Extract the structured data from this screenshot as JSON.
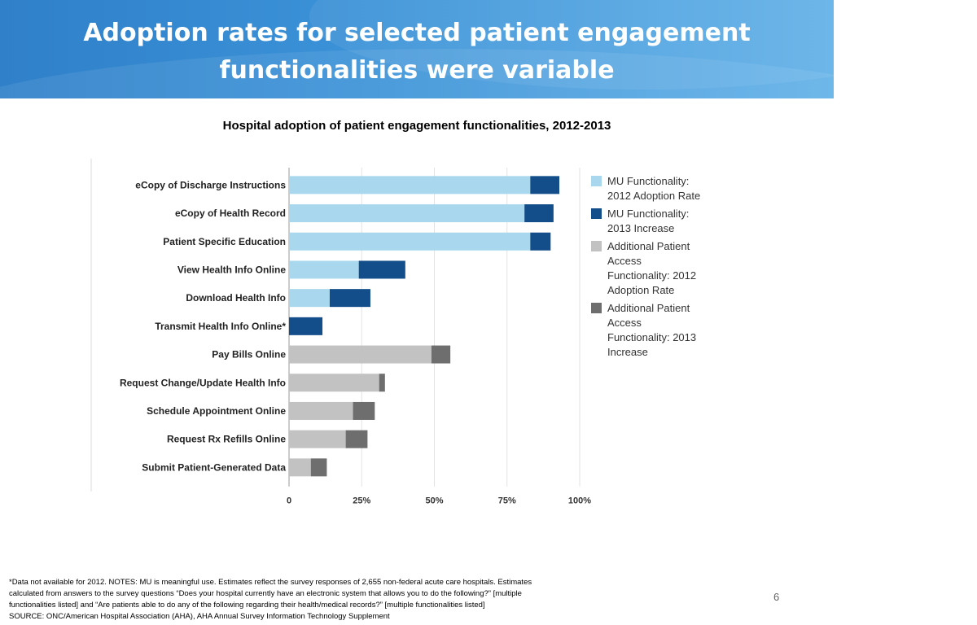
{
  "slide": {
    "title_line1": "Adoption rates for selected patient engagement",
    "title_line2": "functionalities were variable",
    "page_number": "6"
  },
  "chart_data": {
    "type": "bar",
    "orientation": "horizontal",
    "stacked": true,
    "title": "Hospital adoption of patient engagement functionalities, 2012-2013",
    "categories": [
      "eCopy of Discharge Instructions",
      "eCopy of Health Record",
      "Patient Specific Education",
      "View Health Info Online",
      "Download Health Info",
      "Transmit Health Info Online*",
      "Pay Bills Online",
      "Request Change/Update Health Info",
      "Schedule Appointment Online",
      "Request Rx Refills Online",
      "Submit Patient-Generated Data"
    ],
    "category_group": [
      "MU",
      "MU",
      "MU",
      "MU",
      "MU",
      "MU",
      "Additional",
      "Additional",
      "Additional",
      "Additional",
      "Additional"
    ],
    "series": [
      {
        "name": "MU Functionality: 2012 Adoption Rate",
        "color": "#a9d8ee",
        "values": [
          83,
          81,
          83,
          24,
          14,
          null,
          null,
          null,
          null,
          null,
          null
        ]
      },
      {
        "name": "MU Functionality: 2013 Increase",
        "color": "#134e8a",
        "values": [
          10,
          10,
          7,
          16,
          14,
          11.5,
          null,
          null,
          null,
          null,
          null
        ]
      },
      {
        "name": "Additional Patient Access Functionality: 2012 Adoption Rate",
        "color": "#c2c2c2",
        "values": [
          null,
          null,
          null,
          null,
          null,
          null,
          49,
          31,
          22,
          19.5,
          7.5
        ]
      },
      {
        "name": "Additional Patient Access Functionality: 2013 Increase",
        "color": "#6e6e6e",
        "values": [
          null,
          null,
          null,
          null,
          null,
          null,
          6.5,
          2,
          7.5,
          7.5,
          5.5
        ]
      }
    ],
    "xlim": [
      0,
      100
    ],
    "x_ticks": [
      "0",
      "25%",
      "50%",
      "75%",
      "100%"
    ],
    "grid": true,
    "legend_position": "right"
  },
  "legend": {
    "items": [
      {
        "label": "MU Functionality:\n2012 Adoption Rate",
        "color": "#a9d8ee"
      },
      {
        "label": "MU Functionality:\n2013 Increase",
        "color": "#134e8a"
      },
      {
        "label": "Additional Patient\nAccess\nFunctionality: 2012\nAdoption Rate",
        "color": "#c2c2c2"
      },
      {
        "label": "Additional Patient\nAccess\nFunctionality: 2013\nIncrease",
        "color": "#6e6e6e"
      }
    ]
  },
  "footnote": {
    "line1": "*Data not available for 2012.  NOTES: MU is meaningful use. Estimates reflect the survey responses of 2,655 non-federal acute care hospitals. Estimates",
    "line2": "calculated from  answers  to the survey questions “Does your hospital currently have an electronic system that allows you to do the following?” [multiple",
    "line3": "functionalities listed] and  “Are patients able to do any of the following regarding their health/medical records?” [multiple functionalities listed]",
    "line4": "SOURCE: ONC/American Hospital Association (AHA), AHA Annual Survey Information Technology Supplement"
  }
}
